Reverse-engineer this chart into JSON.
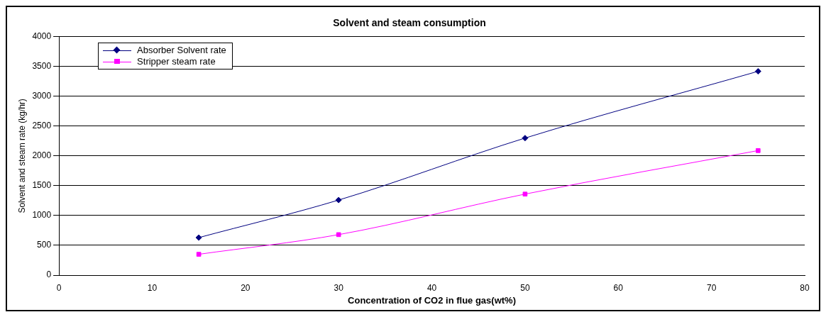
{
  "chart_data": {
    "type": "line",
    "title": "Solvent and steam consumption",
    "xlabel": "Concentration of CO2 in flue gas(wt%)",
    "ylabel": "Solvent and steam rate (kg/hr)",
    "x": [
      15,
      30,
      50,
      75
    ],
    "series": [
      {
        "name": "Absorber Solvent rate",
        "color": "#000080",
        "values": [
          630,
          1260,
          2300,
          3420
        ],
        "marker": "diamond"
      },
      {
        "name": "Stripper steam rate",
        "color": "#ff00ff",
        "values": [
          350,
          680,
          1360,
          2090
        ],
        "marker": "square"
      }
    ],
    "xlim": [
      0,
      80
    ],
    "xticks": [
      0,
      10,
      20,
      30,
      40,
      50,
      60,
      70,
      80
    ],
    "ylim": [
      0,
      4000
    ],
    "yticks": [
      0,
      500,
      1000,
      1500,
      2000,
      2500,
      3000,
      3500,
      4000
    ],
    "grid": "y",
    "legend": "top left",
    "line_style": "solid"
  }
}
